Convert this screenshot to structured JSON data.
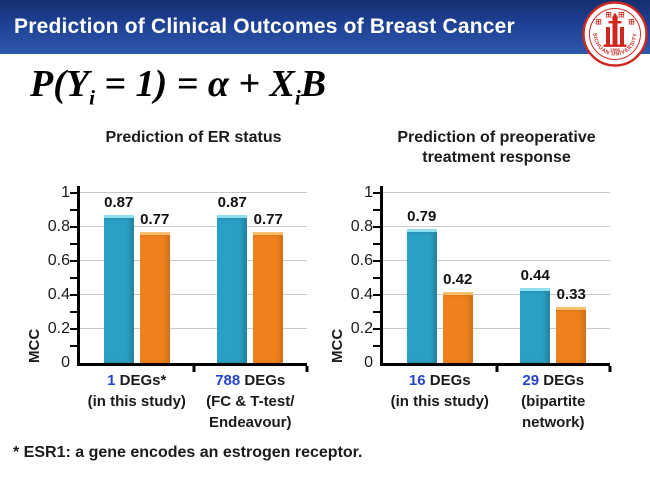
{
  "header": {
    "title": "Prediction of Clinical Outcomes of Breast Cancer",
    "logo": {
      "arc_text": "SICHUAN UNIVERSITY",
      "chinese_text": "四川大学",
      "year": "1896"
    }
  },
  "formula": {
    "p1": "P(Y",
    "s1": "i",
    "p2": " = 1) = α + X",
    "s2": "i",
    "p3": "B"
  },
  "footnote": "* ESR1: a gene encodes an estrogen receptor.",
  "colors": {
    "bar_teal": "#2aa0c4",
    "bar_teal_top": "#8fe0ee",
    "bar_orange": "#f0801c",
    "bar_orange_top": "#fcbf6e",
    "grid": "#c9c9c9",
    "number_blue": "#2643cd",
    "logo_red": "#cf2720"
  },
  "chart_data": [
    {
      "type": "bar",
      "title": "Prediction of ER status",
      "title_lines": [
        "Prediction of ER status"
      ],
      "ylabel": "MCC",
      "xlabel": "",
      "ylim": [
        0,
        1
      ],
      "yticks": [
        0,
        0.2,
        0.4,
        0.6,
        0.8,
        1
      ],
      "ytick_labels": [
        "0",
        "0.2",
        "0.4",
        "0.6",
        "0.8",
        "1"
      ],
      "yticks_minor": [
        0.1,
        0.2,
        0.3,
        0.4,
        0.5,
        0.6,
        0.7,
        0.8,
        0.9,
        1.0
      ],
      "grid": true,
      "legend": "none",
      "categories": [
        {
          "number": "1",
          "label": "DEGs*",
          "sublines": [
            "(in this study)"
          ]
        },
        {
          "number": "788",
          "label": "DEGs",
          "sublines": [
            "(FC & T-test/",
            "Endeavour)"
          ]
        }
      ],
      "series": [
        {
          "name": "teal",
          "values": [
            0.87,
            0.87
          ]
        },
        {
          "name": "orange",
          "values": [
            0.77,
            0.77
          ]
        }
      ]
    },
    {
      "type": "bar",
      "title": "Prediction of preoperative treatment response",
      "title_lines": [
        "Prediction of preoperative",
        "treatment response"
      ],
      "ylabel": "MCC",
      "xlabel": "",
      "ylim": [
        0,
        1
      ],
      "yticks": [
        0,
        0.2,
        0.4,
        0.6,
        0.8,
        1
      ],
      "ytick_labels": [
        "0",
        "0.2",
        "0.4",
        "0.6",
        "0.8",
        "1"
      ],
      "yticks_minor": [
        0.1,
        0.2,
        0.3,
        0.4,
        0.5,
        0.6,
        0.7,
        0.8,
        0.9,
        1.0
      ],
      "grid": true,
      "legend": "none",
      "categories": [
        {
          "number": "16",
          "label": "DEGs",
          "sublines": [
            "(in this study)"
          ]
        },
        {
          "number": "29",
          "label": "DEGs",
          "sublines": [
            "(bipartite",
            "network)"
          ]
        }
      ],
      "series": [
        {
          "name": "teal",
          "values": [
            0.79,
            0.44
          ]
        },
        {
          "name": "orange",
          "values": [
            0.42,
            0.33
          ]
        }
      ]
    }
  ]
}
